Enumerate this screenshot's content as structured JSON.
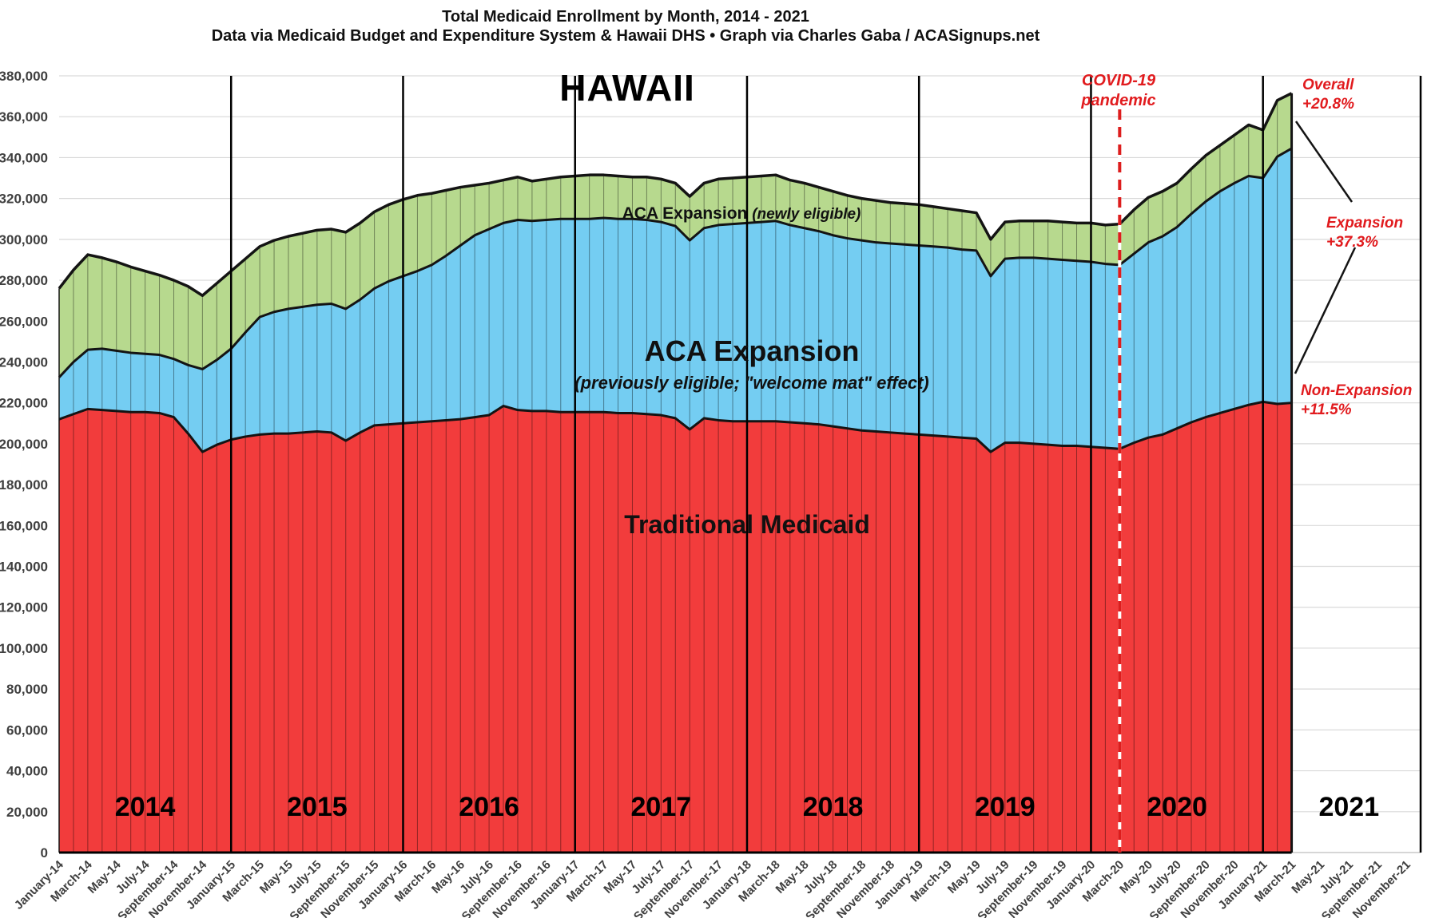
{
  "header": {
    "title": "Total Medicaid Enrollment by Month, 2014 - 2021",
    "subtitle": "Data via Medicaid Budget and Expenditure System & Hawaii DHS  •  Graph via Charles Gaba / ACASignups.net"
  },
  "labels": {
    "state": "HAWAII",
    "newly_bold": "ACA Expansion ",
    "newly_italic": "(newly eligible)",
    "welcome_title": "ACA Expansion",
    "welcome_sub": "(previously eligible; \"welcome mat\" effect)",
    "traditional": "Traditional Medicaid",
    "covid_line1": "COVID-19",
    "covid_line2": "pandemic",
    "overall_line1": "Overall",
    "overall_line2": "+20.8%",
    "expansion_line1": "Expansion",
    "expansion_line2": "+37.3%",
    "nonexpansion_line1": "Non-Expansion",
    "nonexpansion_line2": "+11.5%"
  },
  "colors": {
    "traditional": "#f23c3c",
    "welcome_mat": "#74cdf2",
    "newly_eligible": "#b7d98e",
    "outline": "#141414",
    "gridline": "#d9d9d9",
    "covid_dash": "#dd1d1d",
    "annotation_red": "#e11b1e",
    "tick_text": "#3f3f3f"
  },
  "chart_data": {
    "type": "area",
    "stacked": true,
    "title": "Total Medicaid Enrollment by Month, 2014 - 2021",
    "xlabel": "",
    "ylabel": "",
    "ylim": [
      0,
      380000
    ],
    "grid": true,
    "x_start": "January-14",
    "x_end_of_data": "March-21",
    "x_axis_extends_to": "December-21",
    "y_ticks": [
      0,
      20000,
      40000,
      60000,
      80000,
      100000,
      120000,
      140000,
      160000,
      180000,
      200000,
      220000,
      240000,
      260000,
      280000,
      300000,
      320000,
      340000,
      360000,
      380000
    ],
    "x_tick_labels": [
      "January-14",
      "March-14",
      "May-14",
      "July-14",
      "September-14",
      "November-14",
      "January-15",
      "March-15",
      "May-15",
      "July-15",
      "September-15",
      "November-15",
      "January-16",
      "March-16",
      "May-16",
      "July-16",
      "September-16",
      "November-16",
      "January-17",
      "March-17",
      "May-17",
      "July-17",
      "September-17",
      "November-17",
      "January-18",
      "March-18",
      "May-18",
      "July-18",
      "September-18",
      "November-18",
      "January-19",
      "March-19",
      "May-19",
      "July-19",
      "September-19",
      "November-19",
      "January-20",
      "March-20",
      "May-20",
      "July-20",
      "September-20",
      "November-20",
      "January-21",
      "March-21",
      "May-21",
      "July-21",
      "September-21",
      "November-21"
    ],
    "year_labels": [
      "2014",
      "2015",
      "2016",
      "2017",
      "2018",
      "2019",
      "2020",
      "2021"
    ],
    "annotations": {
      "covid_line_x": "March-20",
      "overall_change": "+20.8%",
      "expansion_change": "+37.3%",
      "non_expansion_change": "+11.5%"
    },
    "series": [
      {
        "name": "Traditional Medicaid",
        "color": "#f23c3c",
        "values": [
          212000,
          214500,
          217000,
          216500,
          216000,
          215500,
          215500,
          215000,
          213000,
          205000,
          196000,
          199500,
          202000,
          203500,
          204500,
          205000,
          205000,
          205500,
          206000,
          205500,
          201500,
          205500,
          209000,
          209500,
          210000,
          210500,
          211000,
          211500,
          212000,
          213000,
          214000,
          218500,
          216500,
          216000,
          216000,
          215500,
          215500,
          215500,
          215500,
          215000,
          215000,
          214500,
          214000,
          212500,
          207000,
          212500,
          211500,
          211000,
          211000,
          211000,
          211000,
          210500,
          210000,
          209500,
          208500,
          207500,
          206500,
          206000,
          205500,
          205000,
          204500,
          204000,
          203500,
          203000,
          202500,
          196000,
          200500,
          200500,
          200000,
          199500,
          199000,
          199000,
          198500,
          198000,
          197500,
          200500,
          203000,
          204500,
          207500,
          210500,
          213000,
          215000,
          217000,
          219000,
          220500,
          219500,
          220000
        ]
      },
      {
        "name": "ACA Expansion (previously eligible; \"welcome mat\" effect)",
        "color": "#74cdf2",
        "values": [
          20500,
          25500,
          29000,
          30000,
          29500,
          29000,
          28500,
          28500,
          28500,
          33500,
          40500,
          41500,
          44500,
          51000,
          57500,
          59500,
          61000,
          61500,
          62000,
          63000,
          64500,
          65000,
          67000,
          70000,
          72000,
          74000,
          76500,
          80500,
          85000,
          89000,
          91000,
          89500,
          93000,
          93000,
          93500,
          94500,
          94500,
          94500,
          95000,
          95000,
          95000,
          95000,
          94500,
          94000,
          92500,
          93000,
          95500,
          96500,
          97000,
          97500,
          98000,
          96500,
          95500,
          94500,
          93500,
          93000,
          93000,
          92500,
          92500,
          92500,
          92500,
          92500,
          92500,
          92000,
          92000,
          86000,
          90000,
          90500,
          91000,
          91000,
          91000,
          90500,
          90500,
          90000,
          90000,
          92500,
          95500,
          97000,
          98500,
          102000,
          105500,
          108500,
          110500,
          112000,
          109500,
          121000,
          124500
        ]
      },
      {
        "name": "ACA Expansion (newly eligible)",
        "color": "#b7d98e",
        "values": [
          43500,
          45000,
          46500,
          44500,
          43500,
          42000,
          40500,
          39000,
          38500,
          38500,
          36000,
          37500,
          38000,
          36000,
          34500,
          35000,
          35500,
          36000,
          36500,
          36500,
          37500,
          37500,
          37500,
          37500,
          37500,
          37000,
          35000,
          32000,
          28500,
          24500,
          22500,
          21000,
          21000,
          19500,
          20000,
          20500,
          21000,
          21500,
          21000,
          21000,
          20500,
          21000,
          21000,
          21000,
          21500,
          22000,
          22500,
          22500,
          22500,
          22500,
          22500,
          22000,
          22000,
          21500,
          21500,
          21000,
          20500,
          20500,
          20000,
          20000,
          20000,
          19500,
          19000,
          19000,
          18500,
          18000,
          18000,
          18000,
          18000,
          18500,
          18500,
          18500,
          19000,
          19000,
          20000,
          21500,
          22000,
          22000,
          21500,
          22000,
          22500,
          22500,
          23500,
          25000,
          23500,
          27500,
          27000
        ]
      }
    ]
  }
}
